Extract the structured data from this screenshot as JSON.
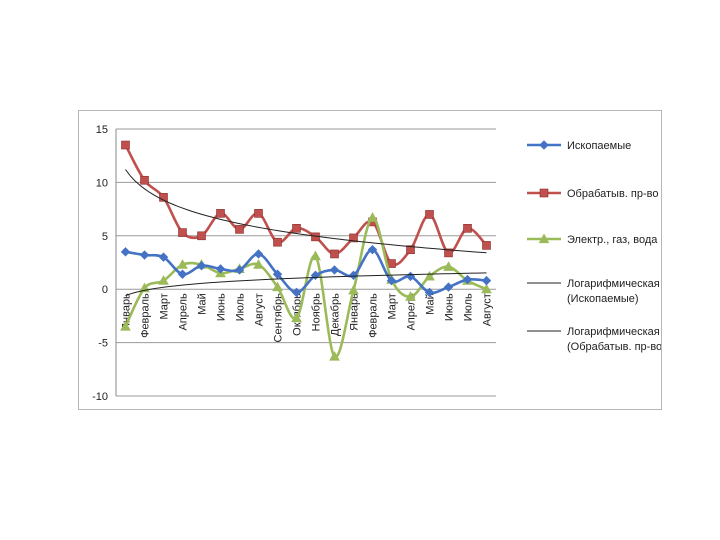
{
  "chart_data": {
    "type": "line",
    "title": "",
    "xlabel": "",
    "ylabel": "",
    "ylim": [
      -10,
      15
    ],
    "yticks": [
      15,
      10,
      5,
      0,
      -5,
      -10
    ],
    "grid": true,
    "legend_position": "right",
    "categories": [
      "Январь",
      "Февраль",
      "Март",
      "Апрель",
      "Май",
      "Июнь",
      "Июль",
      "Август",
      "Сентябрь",
      "Октябрь",
      "Ноябрь",
      "Декабрь",
      "Январь",
      "Февраль",
      "Март",
      "Апрель",
      "Май",
      "Июнь",
      "Июль",
      "Август"
    ],
    "series": [
      {
        "name": "Ископаемые",
        "color": "#4472c4",
        "marker": "diamond",
        "values": [
          3.5,
          3.2,
          3.0,
          1.4,
          2.2,
          1.9,
          1.8,
          3.3,
          1.4,
          -0.3,
          1.3,
          1.8,
          1.3,
          3.7,
          0.8,
          1.2,
          -0.3,
          0.2,
          0.9,
          0.8
        ]
      },
      {
        "name": "Обрабатыв. пр-во",
        "color": "#c0504d",
        "marker": "square",
        "values": [
          13.5,
          10.2,
          8.6,
          5.3,
          5.0,
          7.1,
          5.6,
          7.1,
          4.4,
          5.7,
          4.9,
          3.3,
          4.8,
          6.3,
          2.4,
          3.7,
          7.0,
          3.4,
          5.7,
          4.1
        ]
      },
      {
        "name": "Электр., газ, вода",
        "color": "#9bbb59",
        "marker": "triangle",
        "values": [
          -3.5,
          0.1,
          0.8,
          2.3,
          2.3,
          1.5,
          1.9,
          2.3,
          0.2,
          -2.7,
          3.1,
          -6.3,
          -0.1,
          6.7,
          0.9,
          -0.7,
          1.2,
          2.1,
          0.8,
          0.0
        ]
      },
      {
        "name": "Логарифмическая (Ископаемые)",
        "color": "#222222",
        "marker": "none",
        "trendline": {
          "type": "log",
          "a": -0.6,
          "b": 0.71
        }
      },
      {
        "name": "Логарифмическая (Обрабатыв. пр-во)",
        "color": "#222222",
        "marker": "none",
        "trendline": {
          "type": "log",
          "a": 11.2,
          "b": -2.6
        }
      }
    ]
  }
}
